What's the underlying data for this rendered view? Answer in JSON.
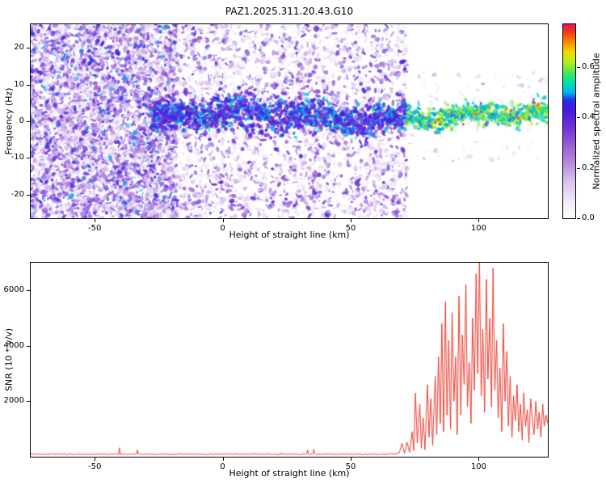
{
  "title": "PAZ1.2025.311.20.43.G10",
  "colors": {
    "axis": "#000000",
    "background": "#ffffff"
  },
  "chart_data": [
    {
      "type": "heatmap",
      "name": "doppler-spectrogram",
      "xlabel": "Height of straight line (km)",
      "ylabel": "Frequency (Hz)",
      "xlim": [
        -75,
        127
      ],
      "ylim": [
        -26.5,
        26.5
      ],
      "x_ticks": [
        -50,
        0,
        50,
        100
      ],
      "y_ticks": [
        -20,
        -10,
        0,
        10,
        20
      ],
      "colorbar": {
        "label": "Normalized spectral amplitude",
        "ticks": [
          0.0,
          0.2,
          0.4,
          0.6
        ],
        "vmax": 0.77
      },
      "colormap_stops": [
        [
          0.0,
          "#ffffff"
        ],
        [
          0.06,
          "#f3ecfa"
        ],
        [
          0.14,
          "#dcc6ef"
        ],
        [
          0.22,
          "#b88ae0"
        ],
        [
          0.3,
          "#9257d6"
        ],
        [
          0.37,
          "#6b2ed6"
        ],
        [
          0.43,
          "#4418e0"
        ],
        [
          0.47,
          "#2630e8"
        ],
        [
          0.5,
          "#00b8f0"
        ],
        [
          0.54,
          "#00e0a8"
        ],
        [
          0.58,
          "#50e850"
        ],
        [
          0.62,
          "#b4ee20"
        ],
        [
          0.66,
          "#f4d800"
        ],
        [
          0.7,
          "#fa8800"
        ],
        [
          0.74,
          "#f23517"
        ],
        [
          0.77,
          "#ea0f6e"
        ]
      ],
      "noise_regions": [
        {
          "x": [
            -75,
            -18
          ],
          "y": [
            -26.5,
            26.5
          ],
          "count": 5200,
          "v_max": 0.46,
          "bias": 1.7
        },
        {
          "x": [
            -18,
            72
          ],
          "y": [
            -26.5,
            26.5
          ],
          "count": 3000,
          "v_max": 0.4,
          "bias": 2.2
        },
        {
          "x": [
            72,
            127
          ],
          "y": [
            -11,
            14
          ],
          "count": 130,
          "v_max": 0.17,
          "bias": 2.4
        }
      ],
      "band": {
        "center": 1.3,
        "wiggle_amp": 1.4,
        "segments": [
          {
            "x": [
              -28,
              72
            ],
            "spread": 2.3,
            "step": 0.55,
            "per_step": 7,
            "v": [
              0.34,
              0.52
            ],
            "cyan_p": 0.05,
            "hot_p": 0.012
          },
          {
            "x": [
              72,
              127
            ],
            "spread": 1.4,
            "step": 0.6,
            "per_step": 6,
            "v": [
              0.48,
              0.66
            ],
            "cyan_p": 0.0,
            "hot_p": 0.07
          }
        ]
      },
      "render_seed": 7
    },
    {
      "type": "line",
      "name": "snr-profile",
      "xlabel": "Height of straight line (km)",
      "ylabel": "SNR (10 * v/v)",
      "xlim": [
        -75,
        127
      ],
      "ylim": [
        0,
        7000
      ],
      "x_ticks": [
        -50,
        0,
        50,
        100
      ],
      "y_ticks": [
        2000,
        4000,
        6000
      ],
      "color": "#e8291c",
      "baseline": {
        "x_start": -75,
        "x_end": 64.8,
        "step": 0.35,
        "level": 90,
        "jitter": 40,
        "spike_p": 0.012,
        "spike_amp": 260
      },
      "points": [
        [
          65,
          110
        ],
        [
          67,
          90
        ],
        [
          69,
          140
        ],
        [
          70,
          480
        ],
        [
          71,
          120
        ],
        [
          72,
          520
        ],
        [
          73,
          160
        ],
        [
          74,
          900
        ],
        [
          74.6,
          220
        ],
        [
          75.3,
          2300
        ],
        [
          76,
          500
        ],
        [
          77,
          1900
        ],
        [
          77.6,
          300
        ],
        [
          78.3,
          1400
        ],
        [
          79,
          250
        ],
        [
          80,
          2600
        ],
        [
          80.6,
          700
        ],
        [
          81.3,
          2100
        ],
        [
          82,
          400
        ],
        [
          83,
          2900
        ],
        [
          83.6,
          800
        ],
        [
          84.3,
          3600
        ],
        [
          85,
          1200
        ],
        [
          85.6,
          4800
        ],
        [
          86.3,
          900
        ],
        [
          87,
          5600
        ],
        [
          87.6,
          1500
        ],
        [
          88.3,
          4200
        ],
        [
          89,
          1000
        ],
        [
          89.6,
          5200
        ],
        [
          90.3,
          2000
        ],
        [
          91,
          3600
        ],
        [
          91.6,
          800
        ],
        [
          92.3,
          5800
        ],
        [
          93,
          1500
        ],
        [
          93.6,
          4400
        ],
        [
          94.3,
          2600
        ],
        [
          95,
          6200
        ],
        [
          95.6,
          1800
        ],
        [
          96.3,
          3400
        ],
        [
          97,
          1200
        ],
        [
          97.6,
          5000
        ],
        [
          98.3,
          2400
        ],
        [
          99,
          6600
        ],
        [
          99.6,
          3000
        ],
        [
          100.3,
          7000
        ],
        [
          101,
          2200
        ],
        [
          101.6,
          4600
        ],
        [
          102.3,
          1600
        ],
        [
          103,
          6400
        ],
        [
          103.6,
          2800
        ],
        [
          104.3,
          5000
        ],
        [
          105,
          1800
        ],
        [
          105.6,
          6800
        ],
        [
          106.3,
          2400
        ],
        [
          107,
          4200
        ],
        [
          107.6,
          1400
        ],
        [
          108.3,
          3200
        ],
        [
          109,
          900
        ],
        [
          109.6,
          4800
        ],
        [
          110.3,
          2000
        ],
        [
          111,
          3800
        ],
        [
          111.6,
          1100
        ],
        [
          112.3,
          2900
        ],
        [
          113,
          700
        ],
        [
          113.6,
          2200
        ],
        [
          114.3,
          1300
        ],
        [
          115,
          2600
        ],
        [
          115.6,
          900
        ],
        [
          116.3,
          1900
        ],
        [
          117,
          600
        ],
        [
          117.6,
          2300
        ],
        [
          118.3,
          1100
        ],
        [
          119,
          1700
        ],
        [
          119.6,
          500
        ],
        [
          120.3,
          2100
        ],
        [
          121,
          1300
        ],
        [
          121.6,
          800
        ],
        [
          122.3,
          2000
        ],
        [
          123,
          1000
        ],
        [
          123.6,
          1600
        ],
        [
          124.3,
          700
        ],
        [
          125,
          1900
        ],
        [
          125.6,
          1100
        ],
        [
          126.3,
          1500
        ],
        [
          127,
          1200
        ]
      ],
      "render_seed": 13
    }
  ]
}
